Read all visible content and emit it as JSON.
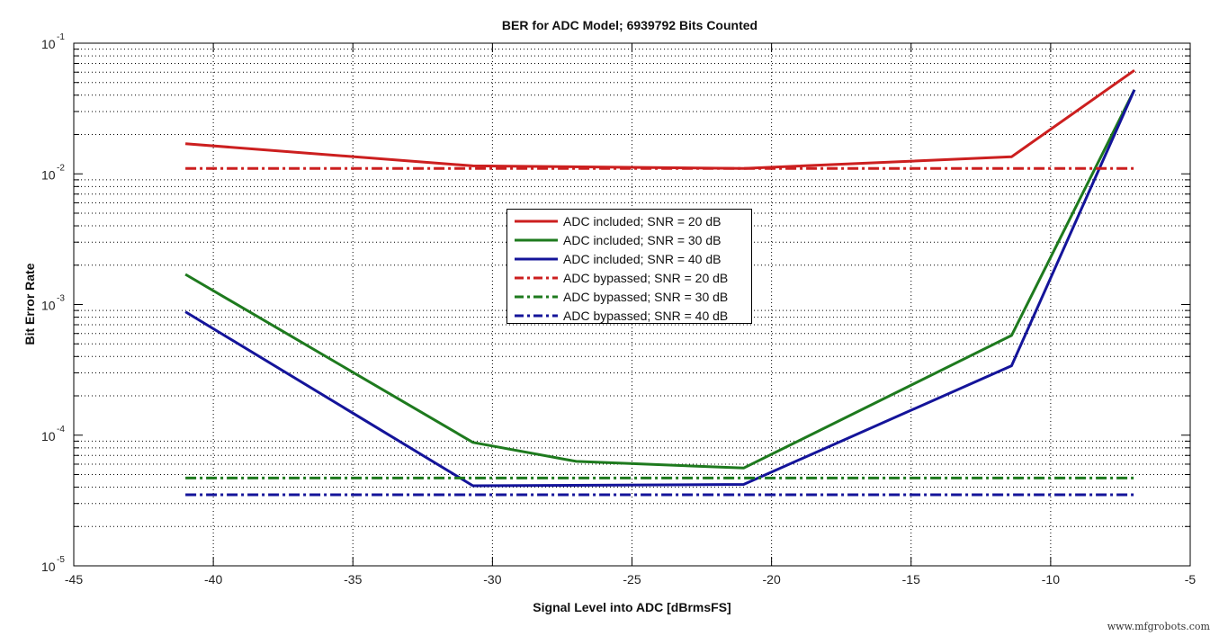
{
  "title": "BER for ADC Model; 6939792 Bits Counted",
  "xlabel": "Signal Level into ADC [dBrmsFS]",
  "ylabel": "Bit Error Rate",
  "watermark": "www.mfgrobots.com",
  "x_ticks": [
    "-45",
    "-40",
    "-35",
    "-30",
    "-25",
    "-20",
    "-15",
    "-10",
    "-5"
  ],
  "y_ticks": [
    {
      "base": "10",
      "exp": "-1"
    },
    {
      "base": "10",
      "exp": "-2"
    },
    {
      "base": "10",
      "exp": "-3"
    },
    {
      "base": "10",
      "exp": "-4"
    },
    {
      "base": "10",
      "exp": "-5"
    }
  ],
  "legend": [
    {
      "label": "ADC included; SNR = 20 dB",
      "color": "#cc1f1f",
      "style": "solid"
    },
    {
      "label": "ADC included; SNR = 30 dB",
      "color": "#1e7a1e",
      "style": "solid"
    },
    {
      "label": "ADC included; SNR = 40 dB",
      "color": "#14149a",
      "style": "solid"
    },
    {
      "label": "ADC bypassed; SNR = 20 dB",
      "color": "#cc1f1f",
      "style": "dashdot"
    },
    {
      "label": "ADC bypassed; SNR = 30 dB",
      "color": "#1e7a1e",
      "style": "dashdot"
    },
    {
      "label": "ADC bypassed; SNR = 40 dB",
      "color": "#14149a",
      "style": "dashdot"
    }
  ],
  "chart_data": {
    "type": "line",
    "title": "BER for ADC Model; 6939792 Bits Counted",
    "xlabel": "Signal Level into ADC [dBrmsFS]",
    "ylabel": "Bit Error Rate",
    "xlim": [
      -45,
      -5
    ],
    "ylim": [
      1e-05,
      0.1
    ],
    "yscale": "log",
    "grid": true,
    "legend_position": "center",
    "series": [
      {
        "name": "ADC included; SNR = 20 dB",
        "color": "#cc1f1f",
        "style": "solid",
        "x": [
          -41,
          -30.7,
          -21,
          -11.4,
          -7
        ],
        "y": [
          0.017,
          0.0115,
          0.011,
          0.0135,
          0.062
        ]
      },
      {
        "name": "ADC included; SNR = 30 dB",
        "color": "#1e7a1e",
        "style": "solid",
        "x": [
          -41,
          -30.7,
          -27,
          -21,
          -11.4,
          -7
        ],
        "y": [
          0.0017,
          8.8e-05,
          6.3e-05,
          5.6e-05,
          0.00058,
          0.044
        ]
      },
      {
        "name": "ADC included; SNR = 40 dB",
        "color": "#14149a",
        "style": "solid",
        "x": [
          -41,
          -30.7,
          -21,
          -11.4,
          -7
        ],
        "y": [
          0.00088,
          4.1e-05,
          4.2e-05,
          0.00034,
          0.044
        ]
      },
      {
        "name": "ADC bypassed; SNR = 20 dB",
        "color": "#cc1f1f",
        "style": "dashdot",
        "x": [
          -41,
          -7
        ],
        "y": [
          0.011,
          0.011
        ]
      },
      {
        "name": "ADC bypassed; SNR = 30 dB",
        "color": "#1e7a1e",
        "style": "dashdot",
        "x": [
          -41,
          -7
        ],
        "y": [
          4.7e-05,
          4.7e-05
        ]
      },
      {
        "name": "ADC bypassed; SNR = 40 dB",
        "color": "#14149a",
        "style": "dashdot",
        "x": [
          -41,
          -7
        ],
        "y": [
          3.5e-05,
          3.5e-05
        ]
      }
    ]
  }
}
